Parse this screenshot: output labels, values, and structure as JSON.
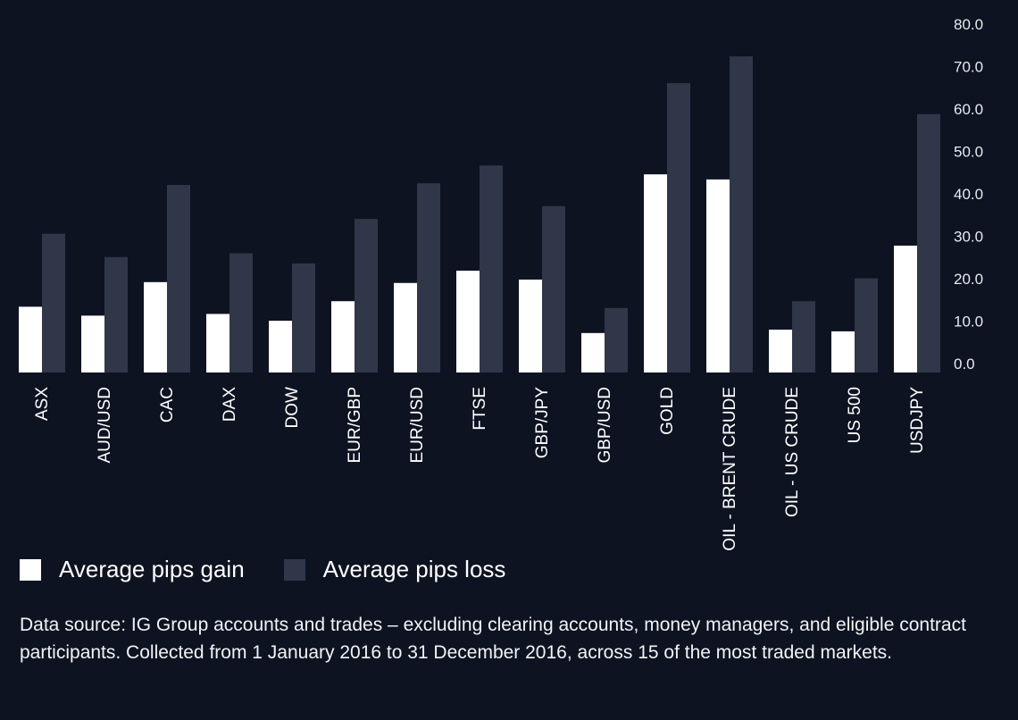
{
  "colors": {
    "background": "#0d1321",
    "gain": "#ffffff",
    "loss": "#2f3749"
  },
  "chart_data": {
    "type": "bar",
    "categories": [
      "ASX",
      "AUD/USD",
      "CAC",
      "DAX",
      "DOW",
      "EUR/GBP",
      "EUR/USD",
      "FTSE",
      "GBP/JPY",
      "GBP/USD",
      "GOLD",
      "OIL - BRENT CRUDE",
      "OIL - US CRUDE",
      "US 500",
      "USDJPY"
    ],
    "series": [
      {
        "name": "Average pips gain",
        "values": [
          15.5,
          13.4,
          21.3,
          13.8,
          12.2,
          16.8,
          21.1,
          24.0,
          21.9,
          9.3,
          46.7,
          45.5,
          10.1,
          9.7,
          29.9
        ]
      },
      {
        "name": "Average pips loss",
        "values": [
          32.7,
          27.2,
          44.2,
          28.1,
          25.7,
          36.2,
          44.6,
          48.8,
          39.2,
          15.2,
          68.2,
          74.5,
          16.8,
          22.2,
          60.9
        ]
      }
    ],
    "yticks": [
      "0.0",
      "10.0",
      "20.0",
      "30.0",
      "40.0",
      "50.0",
      "60.0",
      "70.0",
      "80.0"
    ],
    "ylim": [
      0,
      80
    ],
    "y_axis_side": "right",
    "grid": false,
    "legend_placement": "bottom-left"
  },
  "legend": {
    "gain": "Average pips gain",
    "loss": "Average pips loss"
  },
  "footnote": "Data source: IG Group accounts and trades – excluding clearing accounts, money managers, and eligible contract participants. Collected from 1 January 2016 to 31 December 2016, across 15 of the most traded markets."
}
